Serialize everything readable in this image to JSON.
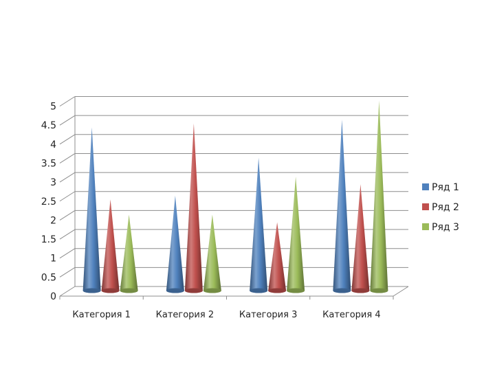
{
  "chart_data": {
    "type": "bar",
    "shape": "cone",
    "categories": [
      "Категория 1",
      "Категория 2",
      "Категория 3",
      "Категория 4"
    ],
    "series": [
      {
        "name": "Ряд 1",
        "values": [
          4.3,
          2.5,
          3.5,
          4.5
        ],
        "color": "#4f81bd"
      },
      {
        "name": "Ряд 2",
        "values": [
          2.4,
          4.4,
          1.8,
          2.8
        ],
        "color": "#c0504d"
      },
      {
        "name": "Ряд 3",
        "values": [
          2.0,
          2.0,
          3.0,
          5.0
        ],
        "color": "#9bbb59"
      }
    ],
    "yticks": [
      "0",
      "0.5",
      "1",
      "1.5",
      "2",
      "2.5",
      "3",
      "3.5",
      "4",
      "4.5",
      "5"
    ],
    "ylim": [
      0,
      5
    ],
    "grid": true,
    "legend": "right",
    "title": "",
    "xlabel": "",
    "ylabel": ""
  }
}
